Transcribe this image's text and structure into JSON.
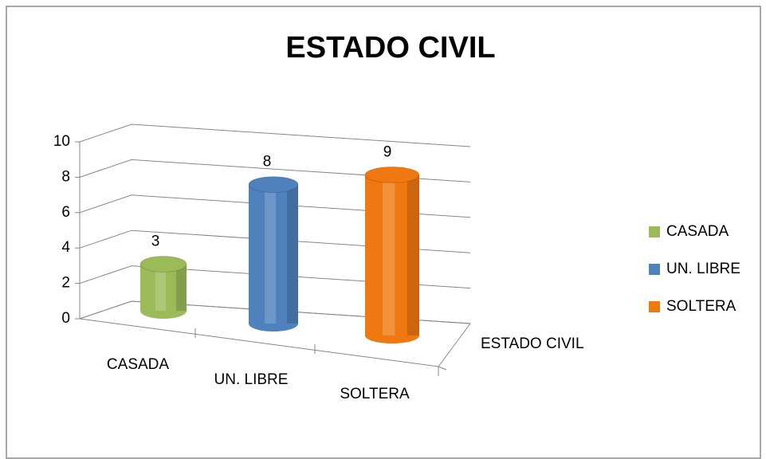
{
  "chart_data": {
    "type": "bar3d",
    "title": "ESTADO CIVIL",
    "categories": [
      "ESTADO CIVIL"
    ],
    "series": [
      {
        "name": "CASADA",
        "color": "#9bbb59",
        "values": [
          3
        ]
      },
      {
        "name": "UN. LIBRE",
        "color": "#4f81bd",
        "values": [
          8
        ]
      },
      {
        "name": "SOLTERA",
        "color": "#f07810",
        "values": [
          9
        ]
      }
    ],
    "ylim": [
      0,
      10
    ],
    "yticks": [
      0,
      2,
      4,
      6,
      8,
      10
    ],
    "grid": true,
    "legend": "right"
  }
}
